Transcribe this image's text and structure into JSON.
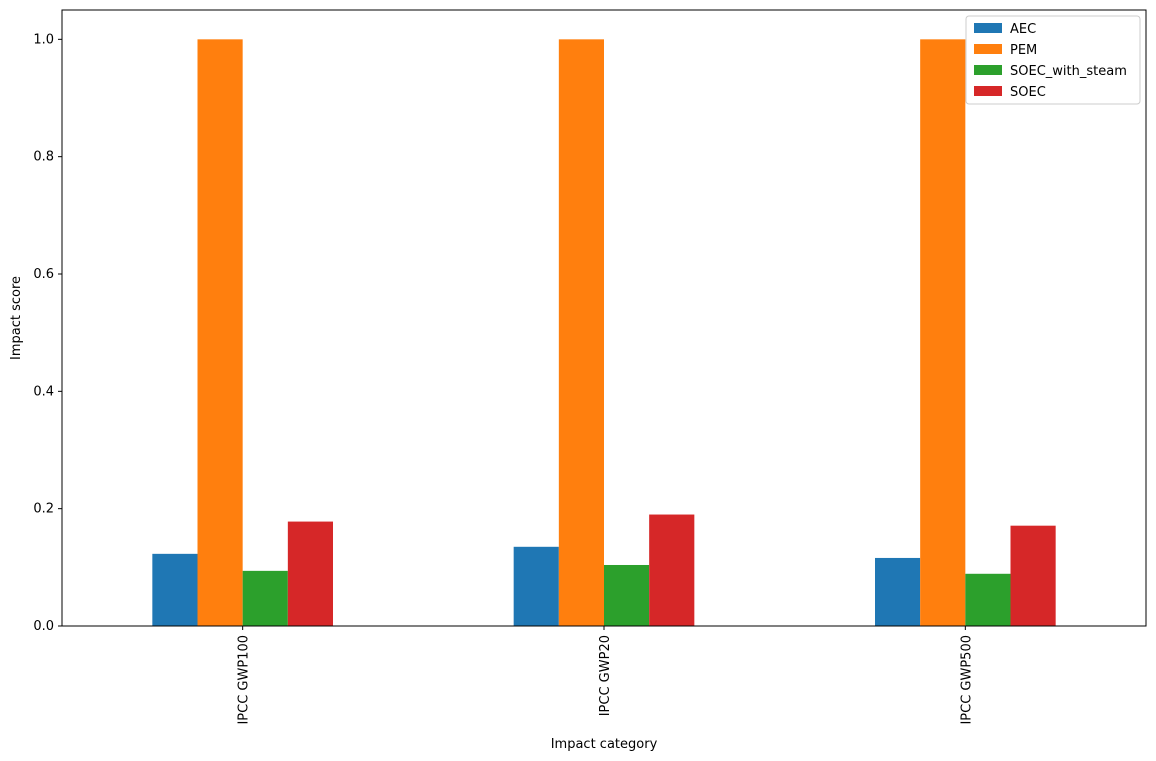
{
  "chart_data": {
    "type": "bar",
    "xlabel": "Impact category",
    "ylabel": "Impact score",
    "categories": [
      "IPCC GWP100",
      "IPCC GWP20",
      "IPCC GWP500"
    ],
    "ylim": [
      0,
      1.05
    ],
    "yticks": [
      "0.0",
      "0.2",
      "0.4",
      "0.6",
      "0.8",
      "1.0"
    ],
    "legend_position": "top-right",
    "grid": false,
    "series": [
      {
        "name": "AEC",
        "color": "#1f77b4",
        "values": [
          0.123,
          0.135,
          0.116
        ]
      },
      {
        "name": "PEM",
        "color": "#ff7f0e",
        "values": [
          1.0,
          1.0,
          1.0
        ]
      },
      {
        "name": "SOEC_with_steam",
        "color": "#2ca02c",
        "values": [
          0.094,
          0.104,
          0.089
        ]
      },
      {
        "name": "SOEC",
        "color": "#d62728",
        "values": [
          0.178,
          0.19,
          0.171
        ]
      }
    ]
  }
}
